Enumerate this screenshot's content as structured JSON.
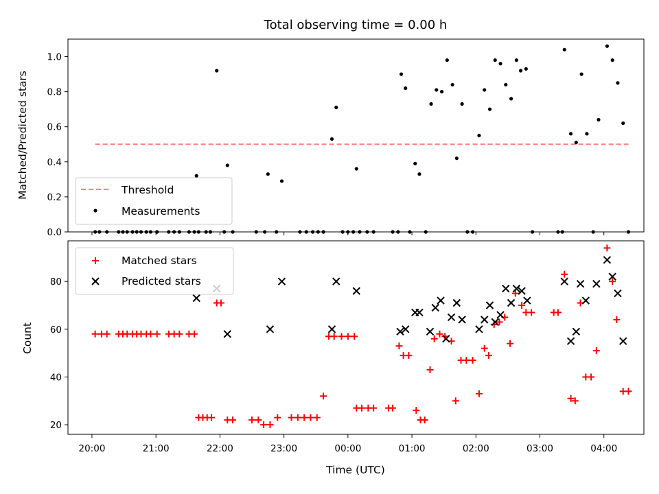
{
  "chart_data": [
    {
      "type": "scatter",
      "title": "Total observing time = 0.00 h",
      "ylabel": "Matched/Predicted stars",
      "xlabel": "",
      "x_unit": "hours since 20:00 UTC",
      "xlim": [
        "19:45",
        "04:45"
      ],
      "ylim": [
        0,
        1.1
      ],
      "yticks": [
        "0.0",
        "0.2",
        "0.4",
        "0.6",
        "0.8",
        "1.0"
      ],
      "legend_position": "lower-left",
      "threshold": {
        "name": "Threshold",
        "value": 0.5,
        "x_start": "20:03",
        "x_end": "04:23",
        "color": "#ff7f7f",
        "style": "dashed"
      },
      "series": [
        {
          "name": "Measurements",
          "color": "#000000",
          "marker": "dot",
          "points": [
            [
              "20:03",
              0
            ],
            [
              "20:07",
              0
            ],
            [
              "20:14",
              0
            ],
            [
              "20:25",
              0
            ],
            [
              "20:29",
              0
            ],
            [
              "20:33",
              0
            ],
            [
              "20:38",
              0
            ],
            [
              "20:42",
              0
            ],
            [
              "20:46",
              0
            ],
            [
              "20:51",
              0
            ],
            [
              "20:55",
              0
            ],
            [
              "21:01",
              0
            ],
            [
              "21:12",
              0
            ],
            [
              "21:17",
              0
            ],
            [
              "21:22",
              0
            ],
            [
              "21:31",
              0
            ],
            [
              "21:36",
              0
            ],
            [
              "21:40",
              0
            ],
            [
              "21:47",
              0
            ],
            [
              "21:51",
              0
            ],
            [
              "21:38",
              0.32
            ],
            [
              "21:57",
              0.92
            ],
            [
              "22:04",
              0
            ],
            [
              "22:07",
              0.38
            ],
            [
              "22:12",
              0
            ],
            [
              "22:34",
              0
            ],
            [
              "22:42",
              0
            ],
            [
              "22:45",
              0.33
            ],
            [
              "22:53",
              0
            ],
            [
              "22:58",
              0.29
            ],
            [
              "23:15",
              0
            ],
            [
              "23:21",
              0
            ],
            [
              "23:27",
              0
            ],
            [
              "23:32",
              0
            ],
            [
              "23:37",
              0
            ],
            [
              "23:45",
              0.53
            ],
            [
              "23:49",
              0.71
            ],
            [
              "23:55",
              0
            ],
            [
              "24:00",
              0
            ],
            [
              "24:05",
              0
            ],
            [
              "24:08",
              0.36
            ],
            [
              "24:11",
              0
            ],
            [
              "24:18",
              0
            ],
            [
              "24:24",
              0
            ],
            [
              "24:42",
              0
            ],
            [
              "24:47",
              0
            ],
            [
              "24:50",
              0.9
            ],
            [
              "24:54",
              0.82
            ],
            [
              "24:58",
              0
            ],
            [
              "25:03",
              0.39
            ],
            [
              "25:07",
              0.33
            ],
            [
              "25:13",
              0
            ],
            [
              "25:18",
              0.73
            ],
            [
              "25:23",
              0.81
            ],
            [
              "25:28",
              0.8
            ],
            [
              "25:33",
              0.98
            ],
            [
              "25:38",
              0.84
            ],
            [
              "25:42",
              0.42
            ],
            [
              "25:47",
              0.73
            ],
            [
              "25:52",
              0
            ],
            [
              "25:57",
              0
            ],
            [
              "26:03",
              0.55
            ],
            [
              "26:08",
              0.81
            ],
            [
              "26:13",
              0.7
            ],
            [
              "26:18",
              0.98
            ],
            [
              "26:23",
              0.96
            ],
            [
              "26:28",
              0.84
            ],
            [
              "26:33",
              0.76
            ],
            [
              "26:38",
              0.98
            ],
            [
              "26:42",
              0.92
            ],
            [
              "26:47",
              0.93
            ],
            [
              "26:53",
              0
            ],
            [
              "27:17",
              0
            ],
            [
              "27:21",
              0
            ],
            [
              "27:23",
              1.04
            ],
            [
              "27:29",
              0.56
            ],
            [
              "27:34",
              0.51
            ],
            [
              "27:39",
              0.9
            ],
            [
              "27:44",
              0.56
            ],
            [
              "27:50",
              0
            ],
            [
              "27:55",
              0.64
            ],
            [
              "28:03",
              1.06
            ],
            [
              "28:08",
              0.98
            ],
            [
              "28:13",
              0.85
            ],
            [
              "28:18",
              0.62
            ],
            [
              "28:23",
              0
            ]
          ]
        }
      ]
    },
    {
      "type": "scatter",
      "title": "",
      "ylabel": "Count",
      "xlabel": "Time (UTC)",
      "x_unit": "hours since 20:00 UTC",
      "xlim": [
        "19:45",
        "04:45"
      ],
      "ylim": [
        16,
        97
      ],
      "yticks": [
        "20",
        "40",
        "60",
        "80"
      ],
      "xticks": [
        "20:00",
        "21:00",
        "22:00",
        "23:00",
        "00:00",
        "01:00",
        "02:00",
        "03:00",
        "04:00"
      ],
      "legend_position": "upper-left",
      "series": [
        {
          "name": "Matched stars",
          "color": "#ff0000",
          "marker": "plus",
          "points": [
            [
              "20:03",
              58
            ],
            [
              "20:09",
              58
            ],
            [
              "20:14",
              58
            ],
            [
              "20:25",
              58
            ],
            [
              "20:29",
              58
            ],
            [
              "20:33",
              58
            ],
            [
              "20:38",
              58
            ],
            [
              "20:42",
              58
            ],
            [
              "20:46",
              58
            ],
            [
              "20:51",
              58
            ],
            [
              "20:55",
              58
            ],
            [
              "21:01",
              58
            ],
            [
              "21:12",
              58
            ],
            [
              "21:17",
              58
            ],
            [
              "21:22",
              58
            ],
            [
              "21:31",
              58
            ],
            [
              "21:36",
              58
            ],
            [
              "21:40",
              23
            ],
            [
              "21:44",
              23
            ],
            [
              "21:48",
              23
            ],
            [
              "21:52",
              23
            ],
            [
              "21:57",
              71
            ],
            [
              "22:01",
              71
            ],
            [
              "22:07",
              22
            ],
            [
              "22:12",
              22
            ],
            [
              "22:30",
              22
            ],
            [
              "22:36",
              22
            ],
            [
              "22:41",
              20
            ],
            [
              "22:47",
              20
            ],
            [
              "22:54",
              23
            ],
            [
              "23:07",
              23
            ],
            [
              "23:13",
              23
            ],
            [
              "23:19",
              23
            ],
            [
              "23:25",
              23
            ],
            [
              "23:31",
              23
            ],
            [
              "23:37",
              32
            ],
            [
              "23:42",
              57
            ],
            [
              "23:47",
              57
            ],
            [
              "23:54",
              57
            ],
            [
              "24:00",
              57
            ],
            [
              "24:06",
              57
            ],
            [
              "24:08",
              27
            ],
            [
              "24:13",
              27
            ],
            [
              "24:19",
              27
            ],
            [
              "24:24",
              27
            ],
            [
              "24:38",
              27
            ],
            [
              "24:42",
              27
            ],
            [
              "24:48",
              53
            ],
            [
              "24:52",
              49
            ],
            [
              "24:57",
              49
            ],
            [
              "25:04",
              26
            ],
            [
              "25:08",
              22
            ],
            [
              "25:12",
              22
            ],
            [
              "25:17",
              43
            ],
            [
              "25:21",
              56
            ],
            [
              "25:26",
              58
            ],
            [
              "25:31",
              57
            ],
            [
              "25:37",
              55
            ],
            [
              "25:41",
              30
            ],
            [
              "25:46",
              47
            ],
            [
              "25:51",
              47
            ],
            [
              "25:57",
              47
            ],
            [
              "26:03",
              33
            ],
            [
              "26:08",
              52
            ],
            [
              "26:12",
              49
            ],
            [
              "26:17",
              62
            ],
            [
              "26:22",
              63
            ],
            [
              "26:27",
              65
            ],
            [
              "26:32",
              54
            ],
            [
              "26:37",
              75
            ],
            [
              "26:43",
              70
            ],
            [
              "26:47",
              67
            ],
            [
              "26:52",
              67
            ],
            [
              "27:13",
              67
            ],
            [
              "27:17",
              67
            ],
            [
              "27:23",
              83
            ],
            [
              "27:29",
              31
            ],
            [
              "27:33",
              30
            ],
            [
              "27:38",
              71
            ],
            [
              "27:43",
              40
            ],
            [
              "27:48",
              40
            ],
            [
              "27:53",
              51
            ],
            [
              "28:03",
              94
            ],
            [
              "28:08",
              80
            ],
            [
              "28:12",
              64
            ],
            [
              "28:18",
              34
            ],
            [
              "28:23",
              34
            ]
          ]
        },
        {
          "name": "Predicted stars",
          "color": "#000000",
          "marker": "cross",
          "points": [
            [
              "21:38",
              73
            ],
            [
              "21:57",
              77
            ],
            [
              "22:07",
              58
            ],
            [
              "22:47",
              60
            ],
            [
              "22:58",
              80
            ],
            [
              "23:45",
              60
            ],
            [
              "23:49",
              80
            ],
            [
              "24:08",
              76
            ],
            [
              "24:49",
              59
            ],
            [
              "24:54",
              60
            ],
            [
              "25:03",
              67
            ],
            [
              "25:07",
              67
            ],
            [
              "25:17",
              59
            ],
            [
              "25:22",
              69
            ],
            [
              "25:27",
              72
            ],
            [
              "25:32",
              56
            ],
            [
              "25:37",
              65
            ],
            [
              "25:42",
              71
            ],
            [
              "25:47",
              64
            ],
            [
              "26:03",
              60
            ],
            [
              "26:08",
              64
            ],
            [
              "26:13",
              70
            ],
            [
              "26:18",
              63
            ],
            [
              "26:23",
              66
            ],
            [
              "26:28",
              77
            ],
            [
              "26:33",
              71
            ],
            [
              "26:38",
              77
            ],
            [
              "26:43",
              76
            ],
            [
              "26:48",
              72
            ],
            [
              "27:23",
              80
            ],
            [
              "27:29",
              55
            ],
            [
              "27:34",
              59
            ],
            [
              "27:38",
              79
            ],
            [
              "27:43",
              72
            ],
            [
              "27:53",
              79
            ],
            [
              "28:03",
              89
            ],
            [
              "28:08",
              82
            ],
            [
              "28:13",
              75
            ],
            [
              "28:18",
              55
            ]
          ]
        }
      ]
    }
  ]
}
